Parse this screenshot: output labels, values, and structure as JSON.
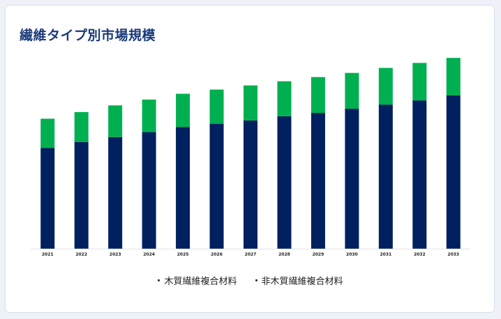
{
  "title": "繊維タイプ別市場規模",
  "colors": {
    "series_a": "#002060",
    "series_b": "#00b050"
  },
  "chart_data": {
    "type": "bar",
    "stacked": true,
    "categories": [
      "2021",
      "2022",
      "2023",
      "2024",
      "2025",
      "2026",
      "2027",
      "2028",
      "2029",
      "2030",
      "2031",
      "2032",
      "2033"
    ],
    "series": [
      {
        "name": "木質繊維複合材料",
        "values": [
          121,
          128,
          134,
          140,
          146,
          150,
          154,
          159,
          163,
          168,
          173,
          178,
          184
        ]
      },
      {
        "name": "非木質繊維複合材料",
        "values": [
          35,
          36,
          38,
          39,
          40,
          41,
          42,
          42,
          43,
          43,
          44,
          45,
          45
        ]
      }
    ],
    "ylim": [
      0,
      240
    ],
    "grid": false,
    "legend_position": "bottom"
  }
}
